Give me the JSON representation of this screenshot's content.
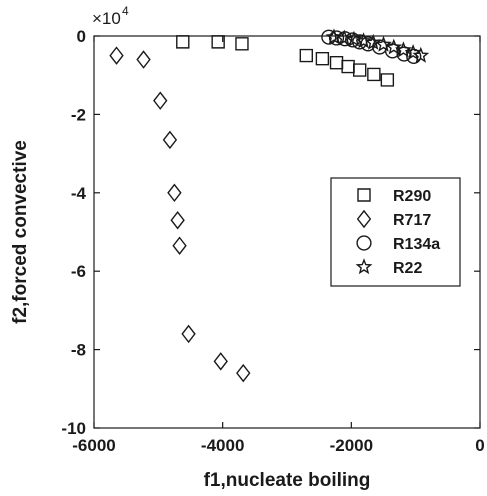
{
  "chart_data": {
    "type": "scatter",
    "xlabel": "f1,nucleate boiling",
    "ylabel": "f2,forced convective",
    "xlim": [
      -6000,
      0
    ],
    "ylim": [
      -100000,
      0
    ],
    "x_ticks": [
      -6000,
      -4000,
      -2000,
      0
    ],
    "x_tick_labels": [
      "-6000",
      "-4000",
      "-2000",
      "0"
    ],
    "y_ticks": [
      0,
      -20000,
      -40000,
      -60000,
      -80000,
      -100000
    ],
    "y_tick_labels": [
      "0",
      "-2",
      "-4",
      "-6",
      "-8",
      "-10"
    ],
    "y_exponent_label": {
      "base": "×10",
      "exponent": "4"
    },
    "grid": false,
    "legend_position": "right-middle",
    "colors": {
      "marker": "#1a1a1a",
      "axis": "#1a1a1a",
      "background": "#ffffff"
    },
    "series": [
      {
        "name": "R290",
        "marker": "square",
        "points": [
          [
            -4620,
            -1500
          ],
          [
            -4070,
            -1500
          ],
          [
            -3700,
            -2000
          ],
          [
            -2700,
            -5000
          ],
          [
            -2450,
            -5800
          ],
          [
            -2230,
            -6800
          ],
          [
            -2050,
            -7800
          ],
          [
            -1870,
            -8700
          ],
          [
            -1650,
            -9800
          ],
          [
            -1440,
            -11200
          ]
        ]
      },
      {
        "name": "R717",
        "marker": "diamond",
        "points": [
          [
            -5650,
            -5000
          ],
          [
            -5230,
            -6000
          ],
          [
            -4970,
            -16500
          ],
          [
            -4820,
            -26500
          ],
          [
            -4750,
            -40000
          ],
          [
            -4700,
            -47000
          ],
          [
            -4670,
            -53500
          ],
          [
            -4530,
            -76000
          ],
          [
            -4030,
            -83000
          ],
          [
            -3680,
            -86000
          ]
        ]
      },
      {
        "name": "R134a",
        "marker": "circle",
        "points": [
          [
            -2350,
            -300
          ],
          [
            -2230,
            -500
          ],
          [
            -2100,
            -700
          ],
          [
            -1980,
            -1000
          ],
          [
            -1870,
            -1500
          ],
          [
            -1740,
            -2000
          ],
          [
            -1560,
            -2800
          ],
          [
            -1360,
            -3800
          ],
          [
            -1180,
            -4600
          ],
          [
            -1030,
            -5200
          ]
        ]
      },
      {
        "name": "R22",
        "marker": "star",
        "points": [
          [
            -2270,
            -300
          ],
          [
            -2110,
            -600
          ],
          [
            -1960,
            -900
          ],
          [
            -1810,
            -1300
          ],
          [
            -1660,
            -1700
          ],
          [
            -1500,
            -2200
          ],
          [
            -1340,
            -2900
          ],
          [
            -1190,
            -3600
          ],
          [
            -1040,
            -4300
          ],
          [
            -920,
            -5000
          ]
        ]
      }
    ]
  }
}
